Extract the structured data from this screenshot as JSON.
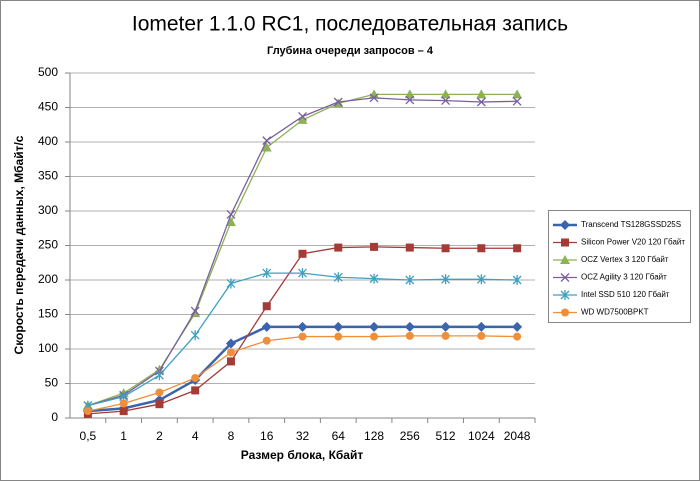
{
  "chart_data": {
    "type": "line",
    "title": "Iometer 1.1.0 RC1, последовательная запись",
    "subtitle": "Глубина очереди запросов – 4",
    "x_label": "Размер блока, Кбайт",
    "y_label": "Скорость передачи данных, Мбайт/с",
    "categories": [
      "0,5",
      "1",
      "2",
      "4",
      "8",
      "16",
      "32",
      "64",
      "128",
      "256",
      "512",
      "1024",
      "2048"
    ],
    "ylim": [
      0,
      500
    ],
    "yticks": [
      0,
      50,
      100,
      150,
      200,
      250,
      300,
      350,
      400,
      450,
      500
    ],
    "grid": true,
    "legend": "right",
    "series": [
      {
        "name": "Transcend TS128GSSD25S",
        "color": "#3b64ad",
        "marker": "diamond",
        "values": [
          10,
          14,
          26,
          55,
          108,
          132,
          132,
          132,
          132,
          132,
          132,
          132,
          132
        ]
      },
      {
        "name": "Silicon Power V20 120 Гбайт",
        "color": "#a33b37",
        "marker": "square",
        "values": [
          6,
          10,
          20,
          40,
          82,
          162,
          238,
          247,
          248,
          247,
          246,
          246,
          246
        ]
      },
      {
        "name": "OCZ Vertex 3 120 Гбайт",
        "color": "#8db255",
        "marker": "triangle",
        "values": [
          18,
          36,
          70,
          152,
          284,
          392,
          432,
          456,
          469,
          469,
          469,
          469,
          469
        ]
      },
      {
        "name": "OCZ Agility 3 120 Гбайт",
        "color": "#7a5fa0",
        "marker": "x",
        "values": [
          18,
          33,
          68,
          155,
          295,
          402,
          437,
          458,
          464,
          461,
          460,
          458,
          459
        ]
      },
      {
        "name": "Intel SSD 510 120 Гбайт",
        "color": "#3fa1c0",
        "marker": "star",
        "values": [
          18,
          31,
          62,
          120,
          195,
          210,
          210,
          204,
          202,
          200,
          201,
          201,
          200
        ]
      },
      {
        "name": "WD WD7500BPKT",
        "color": "#f08f3a",
        "marker": "circle",
        "values": [
          10,
          21,
          37,
          58,
          95,
          112,
          118,
          118,
          118,
          119,
          119,
          119,
          118
        ]
      }
    ]
  }
}
